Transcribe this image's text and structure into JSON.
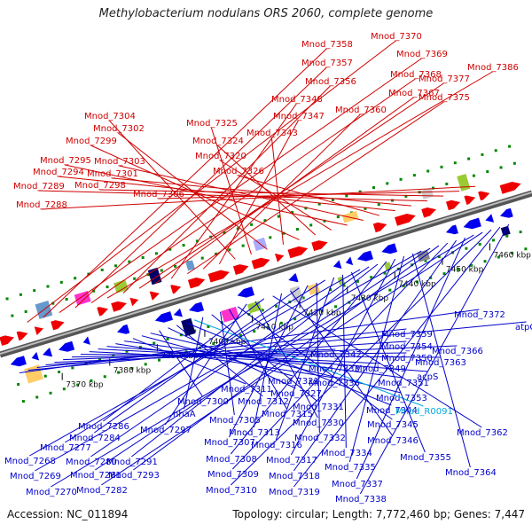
{
  "title": "Methylobacterium nodulans ORS 2060, complete genome",
  "accession": "Accession: NC_011894",
  "summary": "Topology: circular; Length: 7,772,460 bp; Genes: 7,447",
  "colors": {
    "top_label": "#d00000",
    "bottom_label": "#0000cc",
    "rna_label": "#00aadd",
    "forward_gene": "#ee0000",
    "reverse_gene": "#0000ee",
    "backbone": "#888888"
  },
  "scale_ticks": [
    "7370 kbp",
    "7380 kbp",
    "7390 kbp",
    "7400 kbp",
    "7410 kbp",
    "7420 kbp",
    "7430 kbp",
    "7440 kbp",
    "7450 kbp",
    "7460 kbp"
  ],
  "top_labels": [
    "Mnod_7370",
    "Mnod_7358",
    "Mnod_7369",
    "Mnod_7357",
    "Mnod_7368",
    "Mnod_7386",
    "Mnod_7356",
    "Mnod_7377",
    "Mnod_7367",
    "Mnod_7348",
    "Mnod_7375",
    "Mnod_7360",
    "Mnod_7347",
    "Mnod_7304",
    "Mnod_7325",
    "Mnod_7302",
    "Mnod_7343",
    "Mnod_7299",
    "Mnod_7324",
    "Mnod_7320",
    "Mnod_7295",
    "Mnod_7303",
    "Mnod_7326",
    "Mnod_7294",
    "Mnod_7301",
    "Mnod_7289",
    "Mnod_7298",
    "Mnod_7306",
    "Mnod_7288"
  ],
  "bottom_labels": [
    "Mnod_7372",
    "atpC",
    "Mnod_7359",
    "Mnod_7354",
    "Mnod_7366",
    "Mnod_7342",
    "Mnod_7350",
    "Mnod_7363",
    "Mnod_7333",
    "Mnod_7349",
    "acpS",
    "Mnod_7336",
    "Mnod_7351",
    "Mnod_7311",
    "Mnod_7321",
    "Mnod_7353",
    "Mnod_7300",
    "Mnod_7327",
    "Mnod_7312",
    "Mnod_7344",
    "Mnod_R0091",
    "nhaA",
    "Mnod_7331",
    "Mnod_7305",
    "Mnod_7315",
    "Mnod_7345",
    "Mnod_7297",
    "Mnod_7330",
    "Mnod_7286",
    "Mnod_7362",
    "Mnod_7313",
    "Mnod_7346",
    "Mnod_7284",
    "Mnod_7307",
    "Mnod_7332",
    "Mnod_7277",
    "Mnod_7316",
    "Mnod_7334",
    "Mnod_7355",
    "Mnod_7268",
    "Mnod_7280",
    "Mnod_7291",
    "Mnod_7308",
    "Mnod_7317",
    "Mnod_7335",
    "Mnod_7364",
    "Mnod_7269",
    "Mnod_7281",
    "Mnod_7293",
    "Mnod_7309",
    "Mnod_7318",
    "Mnod_7337",
    "Mnod_7270",
    "Mnod_7282",
    "Mnod_7310",
    "Mnod_7319",
    "Mnod_7338"
  ]
}
